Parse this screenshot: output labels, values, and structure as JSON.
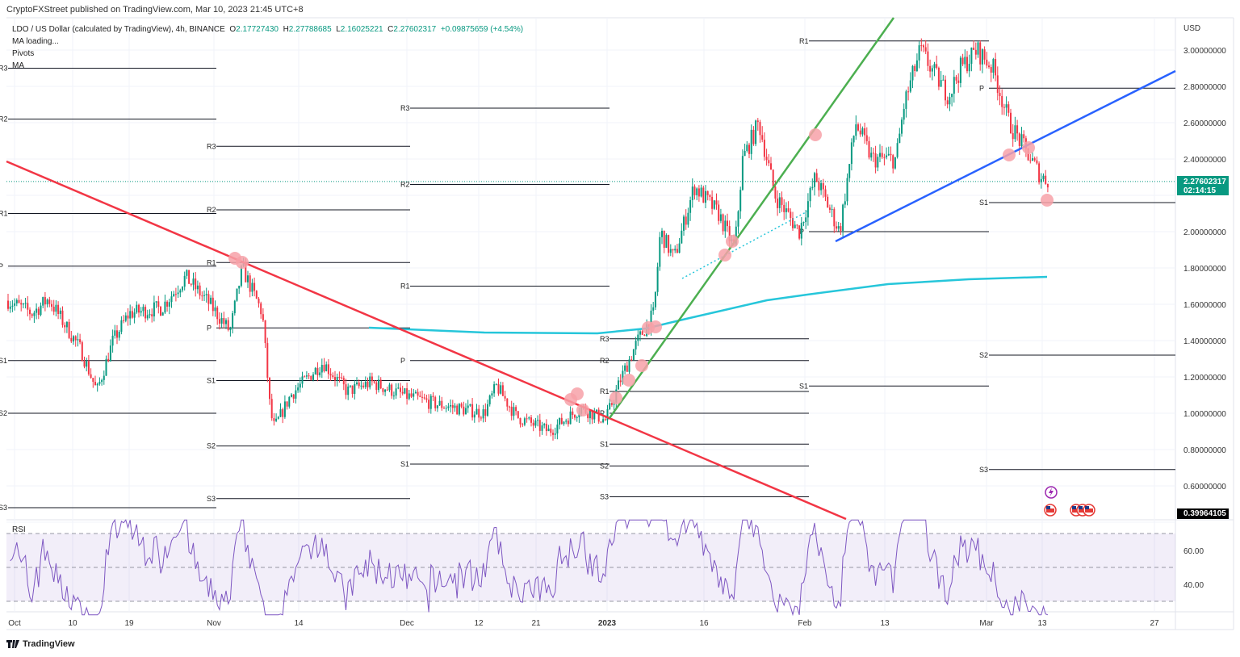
{
  "publisher": "CryptoFXStreet published on TradingView.com, Mar 10, 2023 21:45 UTC+8",
  "legend": {
    "symbol": "LDO / US Dollar (calculated by TradingView), 4h, BINANCE",
    "open_label": "O",
    "open": "2.17727430",
    "high_label": "H",
    "high": "2.27788685",
    "low_label": "L",
    "low": "2.16025221",
    "close_label": "C",
    "close": "2.27602317",
    "change": "+0.09875659 (+4.54%)",
    "indicators": [
      "MA loading...",
      "Pivots",
      "MA"
    ]
  },
  "price_axis": {
    "currency": "USD",
    "ticks": [
      "3.00000000",
      "2.80000000",
      "2.60000000",
      "2.40000000",
      "2.00000000",
      "1.80000000",
      "1.60000000",
      "1.40000000",
      "1.20000000",
      "1.00000000",
      "0.80000000",
      "0.60000000"
    ],
    "last_price": "2.27602317",
    "countdown": "02:14:15",
    "crosshair_value": "0.39964105"
  },
  "time_axis": [
    "Oct",
    "10",
    "19",
    "Nov",
    "14",
    "Dec",
    "12",
    "21",
    "2023",
    "16",
    "Feb",
    "13",
    "Mar",
    "13",
    "27"
  ],
  "rsi": {
    "label": "RSI",
    "ticks": [
      "60.00",
      "40.00"
    ]
  },
  "pivots": [
    {
      "period": "Oct",
      "levels": [
        {
          "label": "R3",
          "value": 2.9
        },
        {
          "label": "R2",
          "value": 2.62
        },
        {
          "label": "R1",
          "value": 2.1
        },
        {
          "label": "P",
          "value": 1.81
        },
        {
          "label": "S1",
          "value": 1.29
        },
        {
          "label": "S2",
          "value": 1.0
        },
        {
          "label": "S3",
          "value": 0.48
        }
      ]
    },
    {
      "period": "Nov",
      "levels": [
        {
          "label": "R3",
          "value": 2.47
        },
        {
          "label": "R2",
          "value": 2.12
        },
        {
          "label": "R1",
          "value": 1.83
        },
        {
          "label": "P",
          "value": 1.47
        },
        {
          "label": "S1",
          "value": 1.18
        },
        {
          "label": "S2",
          "value": 0.82
        },
        {
          "label": "S3",
          "value": 0.53
        }
      ]
    },
    {
      "period": "Dec",
      "levels": [
        {
          "label": "R3",
          "value": 2.68
        },
        {
          "label": "R2",
          "value": 2.26
        },
        {
          "label": "R1",
          "value": 1.7
        },
        {
          "label": "P",
          "value": 1.29
        },
        {
          "label": "S1",
          "value": 0.72
        }
      ]
    },
    {
      "period": "Jan",
      "levels": [
        {
          "label": "R3",
          "value": 1.41
        },
        {
          "label": "R2",
          "value": 1.29
        },
        {
          "label": "R1",
          "value": 1.12
        },
        {
          "label": "P",
          "value": 1.0
        },
        {
          "label": "S1",
          "value": 0.83
        },
        {
          "label": "S2",
          "value": 0.71
        },
        {
          "label": "S3",
          "value": 0.54
        }
      ]
    },
    {
      "period": "Feb",
      "levels": [
        {
          "label": "R1",
          "value": 3.05
        },
        {
          "label": "P",
          "value": 2.0
        },
        {
          "label": "S1",
          "value": 1.15
        }
      ]
    },
    {
      "period": "Mar",
      "levels": [
        {
          "label": "P",
          "value": 2.79
        },
        {
          "label": "S1",
          "value": 2.16
        },
        {
          "label": "S2",
          "value": 1.32
        },
        {
          "label": "S3",
          "value": 0.69
        }
      ]
    }
  ],
  "colors": {
    "up": "#089981",
    "down": "#f23645",
    "downtrend": "#f23645",
    "uptrend": "#4caf50",
    "support_line": "#2962ff",
    "ma": "#26c6da",
    "rsi": "#7e57c2",
    "marker": "#f7a1a8"
  },
  "footer": {
    "brand": "TradingView"
  }
}
